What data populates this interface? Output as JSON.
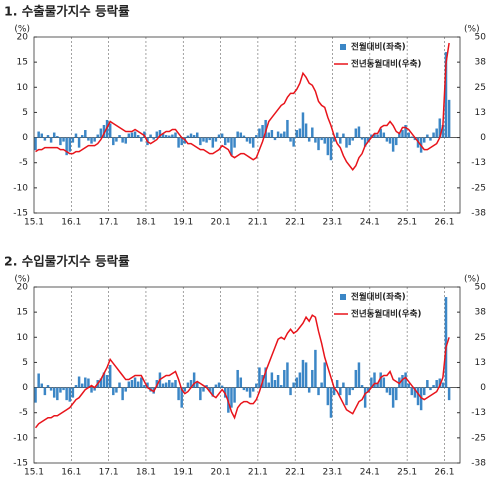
{
  "chart_data": [
    {
      "type": "bar-line",
      "title": "1. 수출물가지수 등락률",
      "y_label": "(%)",
      "y2_label": "(%)",
      "legend": "upper right",
      "xgrid": true,
      "categories": [
        "15.1",
        null,
        null,
        null,
        null,
        null,
        null,
        null,
        null,
        null,
        null,
        null,
        "16.1",
        null,
        null,
        null,
        null,
        null,
        null,
        null,
        null,
        null,
        null,
        null,
        "17.1",
        null,
        null,
        null,
        null,
        null,
        null,
        null,
        null,
        null,
        null,
        null,
        "18.1",
        null,
        null,
        null,
        null,
        null,
        null,
        null,
        null,
        null,
        null,
        null,
        "19.1",
        null,
        null,
        null,
        null,
        null,
        null,
        null,
        null,
        null,
        null,
        null,
        "20.1",
        null,
        null,
        null,
        null,
        null,
        null,
        null,
        null,
        null,
        null,
        null,
        "21.1",
        null,
        null,
        null,
        null,
        null,
        null,
        null,
        null,
        null,
        null,
        null,
        "22.1",
        null,
        null,
        null,
        null,
        null,
        null,
        null,
        null,
        null,
        null,
        null,
        "23.1",
        null,
        null,
        null,
        null,
        null,
        null,
        null,
        null,
        null,
        null,
        null,
        "24.1",
        null,
        null,
        null,
        null,
        null,
        null,
        null,
        null,
        null,
        null,
        null,
        "25.1",
        null,
        null,
        null,
        null,
        null,
        null,
        null,
        null,
        null,
        null,
        null,
        "26.1",
        null
      ],
      "ylim": [
        -15,
        20
      ],
      "yticks": [
        -15,
        -10,
        -5,
        0,
        5,
        10,
        15,
        20
      ],
      "y2lim": [
        -37.5,
        50
      ],
      "y2ticks": [
        {
          "value": -37.5,
          "label": "-38"
        },
        -25,
        {
          "value": -12.5,
          "label": "-13"
        },
        0,
        {
          "value": 12.5,
          "label": "13"
        },
        25,
        {
          "value": 37.5,
          "label": "38"
        },
        50
      ],
      "series": [
        {
          "name": "전월대비(좌축)",
          "type": "bar",
          "color": "#3b86c6",
          "values": [
            -2.5,
            1.2,
            0.8,
            -0.6,
            0.5,
            -1.0,
            1.0,
            0.3,
            -1.5,
            -0.8,
            -3.5,
            -2.8,
            -1.0,
            0.8,
            -2.0,
            0.5,
            1.5,
            -0.6,
            -1.2,
            -0.8,
            0.6,
            1.8,
            2.5,
            3.5,
            2.8,
            -1.5,
            -0.8,
            0.5,
            -1.0,
            -1.2,
            0.8,
            1.0,
            1.2,
            0.5,
            -0.8,
            1.2,
            -1.5,
            0.6,
            -0.4,
            1.2,
            1.5,
            0.8,
            0.5,
            0.4,
            0.6,
            1.0,
            -2.0,
            -1.5,
            -1.2,
            0.4,
            0.8,
            0.5,
            1.0,
            -1.5,
            -0.8,
            -1.0,
            -0.5,
            -2.0,
            -0.8,
            0.6,
            0.8,
            -1.5,
            -1.0,
            -3.5,
            -2.0,
            1.2,
            1.0,
            0.4,
            -0.8,
            -1.2,
            -2.0,
            0.5,
            1.8,
            2.5,
            3.5,
            1.0,
            1.5,
            -0.5,
            1.2,
            0.8,
            1.2,
            3.5,
            -0.8,
            -1.8,
            1.5,
            1.8,
            5.0,
            2.8,
            -0.8,
            2.0,
            -1.0,
            -2.5,
            -0.5,
            -1.2,
            -3.5,
            -4.5,
            -0.8,
            1.0,
            -1.2,
            0.8,
            -2.0,
            -1.5,
            -0.6,
            1.8,
            2.2,
            -0.4,
            -1.8,
            -0.8,
            0.6,
            0.8,
            0.6,
            1.8,
            1.0,
            -0.8,
            -1.2,
            -2.8,
            -1.5,
            1.0,
            1.5,
            2.5,
            1.0,
            0.2,
            -0.5,
            -2.0,
            -3.0,
            -1.0,
            0.6,
            -0.6,
            1.0,
            1.8,
            3.8,
            2.5,
            17.0,
            7.5
          ]
        },
        {
          "name": "전년동월대비(우축)",
          "type": "line",
          "axis": "y2",
          "color": "#e8141b",
          "values": [
            -7,
            -6,
            -6,
            -5,
            -5,
            -5,
            -5,
            -5,
            -6,
            -6,
            -7,
            -8,
            -8,
            -7,
            -7,
            -6,
            -5,
            -4,
            -4,
            -4,
            -3,
            -1,
            2,
            5,
            8,
            7,
            6,
            5,
            4,
            3,
            3,
            3,
            4,
            3,
            2,
            1,
            -2,
            -3,
            -2,
            -1,
            1,
            2,
            3,
            3,
            4,
            4,
            2,
            0,
            -1,
            -3,
            -3,
            -4,
            -5,
            -6,
            -6,
            -7,
            -8,
            -8,
            -7,
            -6,
            -4,
            -5,
            -6,
            -9,
            -10,
            -9,
            -8,
            -8,
            -9,
            -10,
            -11,
            -10,
            -6,
            -2,
            3,
            8,
            10,
            12,
            14,
            16,
            17,
            20,
            22,
            22,
            24,
            27,
            32,
            30,
            27,
            26,
            23,
            18,
            16,
            15,
            10,
            6,
            1,
            -3,
            -5,
            -9,
            -12,
            -14,
            -16,
            -14,
            -10,
            -8,
            -4,
            -2,
            0,
            2,
            2,
            5,
            6,
            6,
            8,
            6,
            3,
            2,
            5,
            5,
            4,
            2,
            0,
            -2,
            -4,
            -6,
            -6,
            -5,
            -4,
            -3,
            0,
            6,
            37,
            47
          ]
        }
      ]
    },
    {
      "type": "bar-line",
      "title": "2. 수입물가지수 등락률",
      "y_label": "(%)",
      "y2_label": "(%)",
      "legend": "upper right",
      "xgrid": true,
      "categories": [
        "15.1",
        null,
        null,
        null,
        null,
        null,
        null,
        null,
        null,
        null,
        null,
        null,
        "16.1",
        null,
        null,
        null,
        null,
        null,
        null,
        null,
        null,
        null,
        null,
        null,
        "17.1",
        null,
        null,
        null,
        null,
        null,
        null,
        null,
        null,
        null,
        null,
        null,
        "18.1",
        null,
        null,
        null,
        null,
        null,
        null,
        null,
        null,
        null,
        null,
        null,
        "19.1",
        null,
        null,
        null,
        null,
        null,
        null,
        null,
        null,
        null,
        null,
        null,
        "20.1",
        null,
        null,
        null,
        null,
        null,
        null,
        null,
        null,
        null,
        null,
        null,
        "21.1",
        null,
        null,
        null,
        null,
        null,
        null,
        null,
        null,
        null,
        null,
        null,
        "22.1",
        null,
        null,
        null,
        null,
        null,
        null,
        null,
        null,
        null,
        null,
        null,
        "23.1",
        null,
        null,
        null,
        null,
        null,
        null,
        null,
        null,
        null,
        null,
        null,
        "24.1",
        null,
        null,
        null,
        null,
        null,
        null,
        null,
        null,
        null,
        null,
        null,
        "25.1",
        null,
        null,
        null,
        null,
        null,
        null,
        null,
        null,
        null,
        null,
        null,
        "26.1",
        null
      ],
      "ylim": [
        -15,
        20
      ],
      "yticks": [
        -15,
        -10,
        -5,
        0,
        5,
        10,
        15,
        20
      ],
      "y2lim": [
        -37.5,
        50
      ],
      "y2ticks": [
        {
          "value": -37.5,
          "label": "-38"
        },
        -25,
        {
          "value": -12.5,
          "label": "-13"
        },
        0,
        {
          "value": 12.5,
          "label": "13"
        },
        25,
        {
          "value": 37.5,
          "label": "38"
        },
        50
      ],
      "series": [
        {
          "name": "전월대비(좌축)",
          "type": "bar",
          "color": "#3b86c6",
          "values": [
            -3.0,
            2.8,
            0.8,
            -1.5,
            0.5,
            -0.6,
            -2.0,
            -2.5,
            -1.0,
            -0.5,
            -2.5,
            -2.8,
            -2.0,
            0.5,
            2.2,
            0.8,
            2.0,
            1.8,
            -1.0,
            -0.6,
            1.5,
            1.8,
            3.0,
            2.5,
            4.5,
            -1.5,
            -1.0,
            1.0,
            -2.5,
            -0.8,
            1.2,
            1.5,
            2.0,
            1.2,
            2.0,
            0.5,
            1.0,
            -0.8,
            -1.2,
            1.5,
            3.0,
            0.8,
            1.0,
            1.5,
            1.0,
            1.5,
            -2.5,
            -4.0,
            -0.8,
            1.0,
            1.5,
            3.0,
            1.0,
            -2.5,
            -0.8,
            0.5,
            -0.8,
            -1.8,
            0.6,
            1.0,
            0.4,
            -2.0,
            -5.0,
            -4.0,
            -3.0,
            3.5,
            2.0,
            -0.5,
            -0.8,
            -2.0,
            -0.8,
            0.8,
            4.0,
            2.5,
            4.0,
            1.0,
            3.0,
            1.5,
            2.5,
            0.5,
            3.5,
            5.0,
            -1.5,
            1.0,
            2.0,
            3.0,
            5.5,
            5.0,
            -1.0,
            3.5,
            7.5,
            -1.5,
            1.0,
            5.0,
            -3.5,
            -6.0,
            -1.5,
            1.5,
            -1.5,
            1.0,
            -3.5,
            -1.5,
            -0.5,
            3.5,
            5.0,
            0.5,
            -4.0,
            -1.0,
            2.0,
            3.0,
            1.0,
            3.0,
            2.0,
            -1.0,
            -1.5,
            -4.0,
            -2.5,
            2.0,
            2.5,
            3.0,
            0.8,
            -1.5,
            -2.0,
            -3.5,
            -4.5,
            -1.5,
            1.5,
            -0.5,
            0.5,
            1.5,
            1.8,
            1.0,
            18.0,
            -2.5
          ]
        },
        {
          "name": "전년동월대비(우축)",
          "type": "line",
          "axis": "y2",
          "color": "#e8141b",
          "values": [
            -20,
            -18,
            -17,
            -16,
            -15,
            -15,
            -14,
            -14,
            -13,
            -12,
            -11,
            -10,
            -8,
            -6,
            -5,
            -3,
            -1,
            0,
            1,
            0,
            2,
            4,
            7,
            10,
            14,
            12,
            10,
            8,
            6,
            4,
            4,
            5,
            6,
            6,
            6,
            3,
            0,
            -1,
            -2,
            1,
            4,
            5,
            6,
            6,
            7,
            8,
            4,
            -1,
            -3,
            -2,
            0,
            2,
            3,
            2,
            1,
            0,
            -2,
            -4,
            -5,
            -3,
            -1,
            -3,
            -7,
            -12,
            -15,
            -10,
            -8,
            -7,
            -7,
            -8,
            -8,
            -6,
            -2,
            3,
            8,
            12,
            16,
            20,
            24,
            25,
            24,
            27,
            29,
            27,
            28,
            30,
            32,
            35,
            33,
            36,
            35,
            28,
            22,
            15,
            10,
            5,
            0,
            -2,
            -5,
            -8,
            -11,
            -12,
            -13,
            -10,
            -7,
            -6,
            -3,
            -2,
            0,
            2,
            2,
            5,
            6,
            6,
            8,
            4,
            3,
            2,
            4,
            5,
            3,
            1,
            -1,
            -3,
            -5,
            -6,
            -5,
            -4,
            -3,
            -2,
            1,
            5,
            20,
            25
          ]
        }
      ]
    }
  ]
}
